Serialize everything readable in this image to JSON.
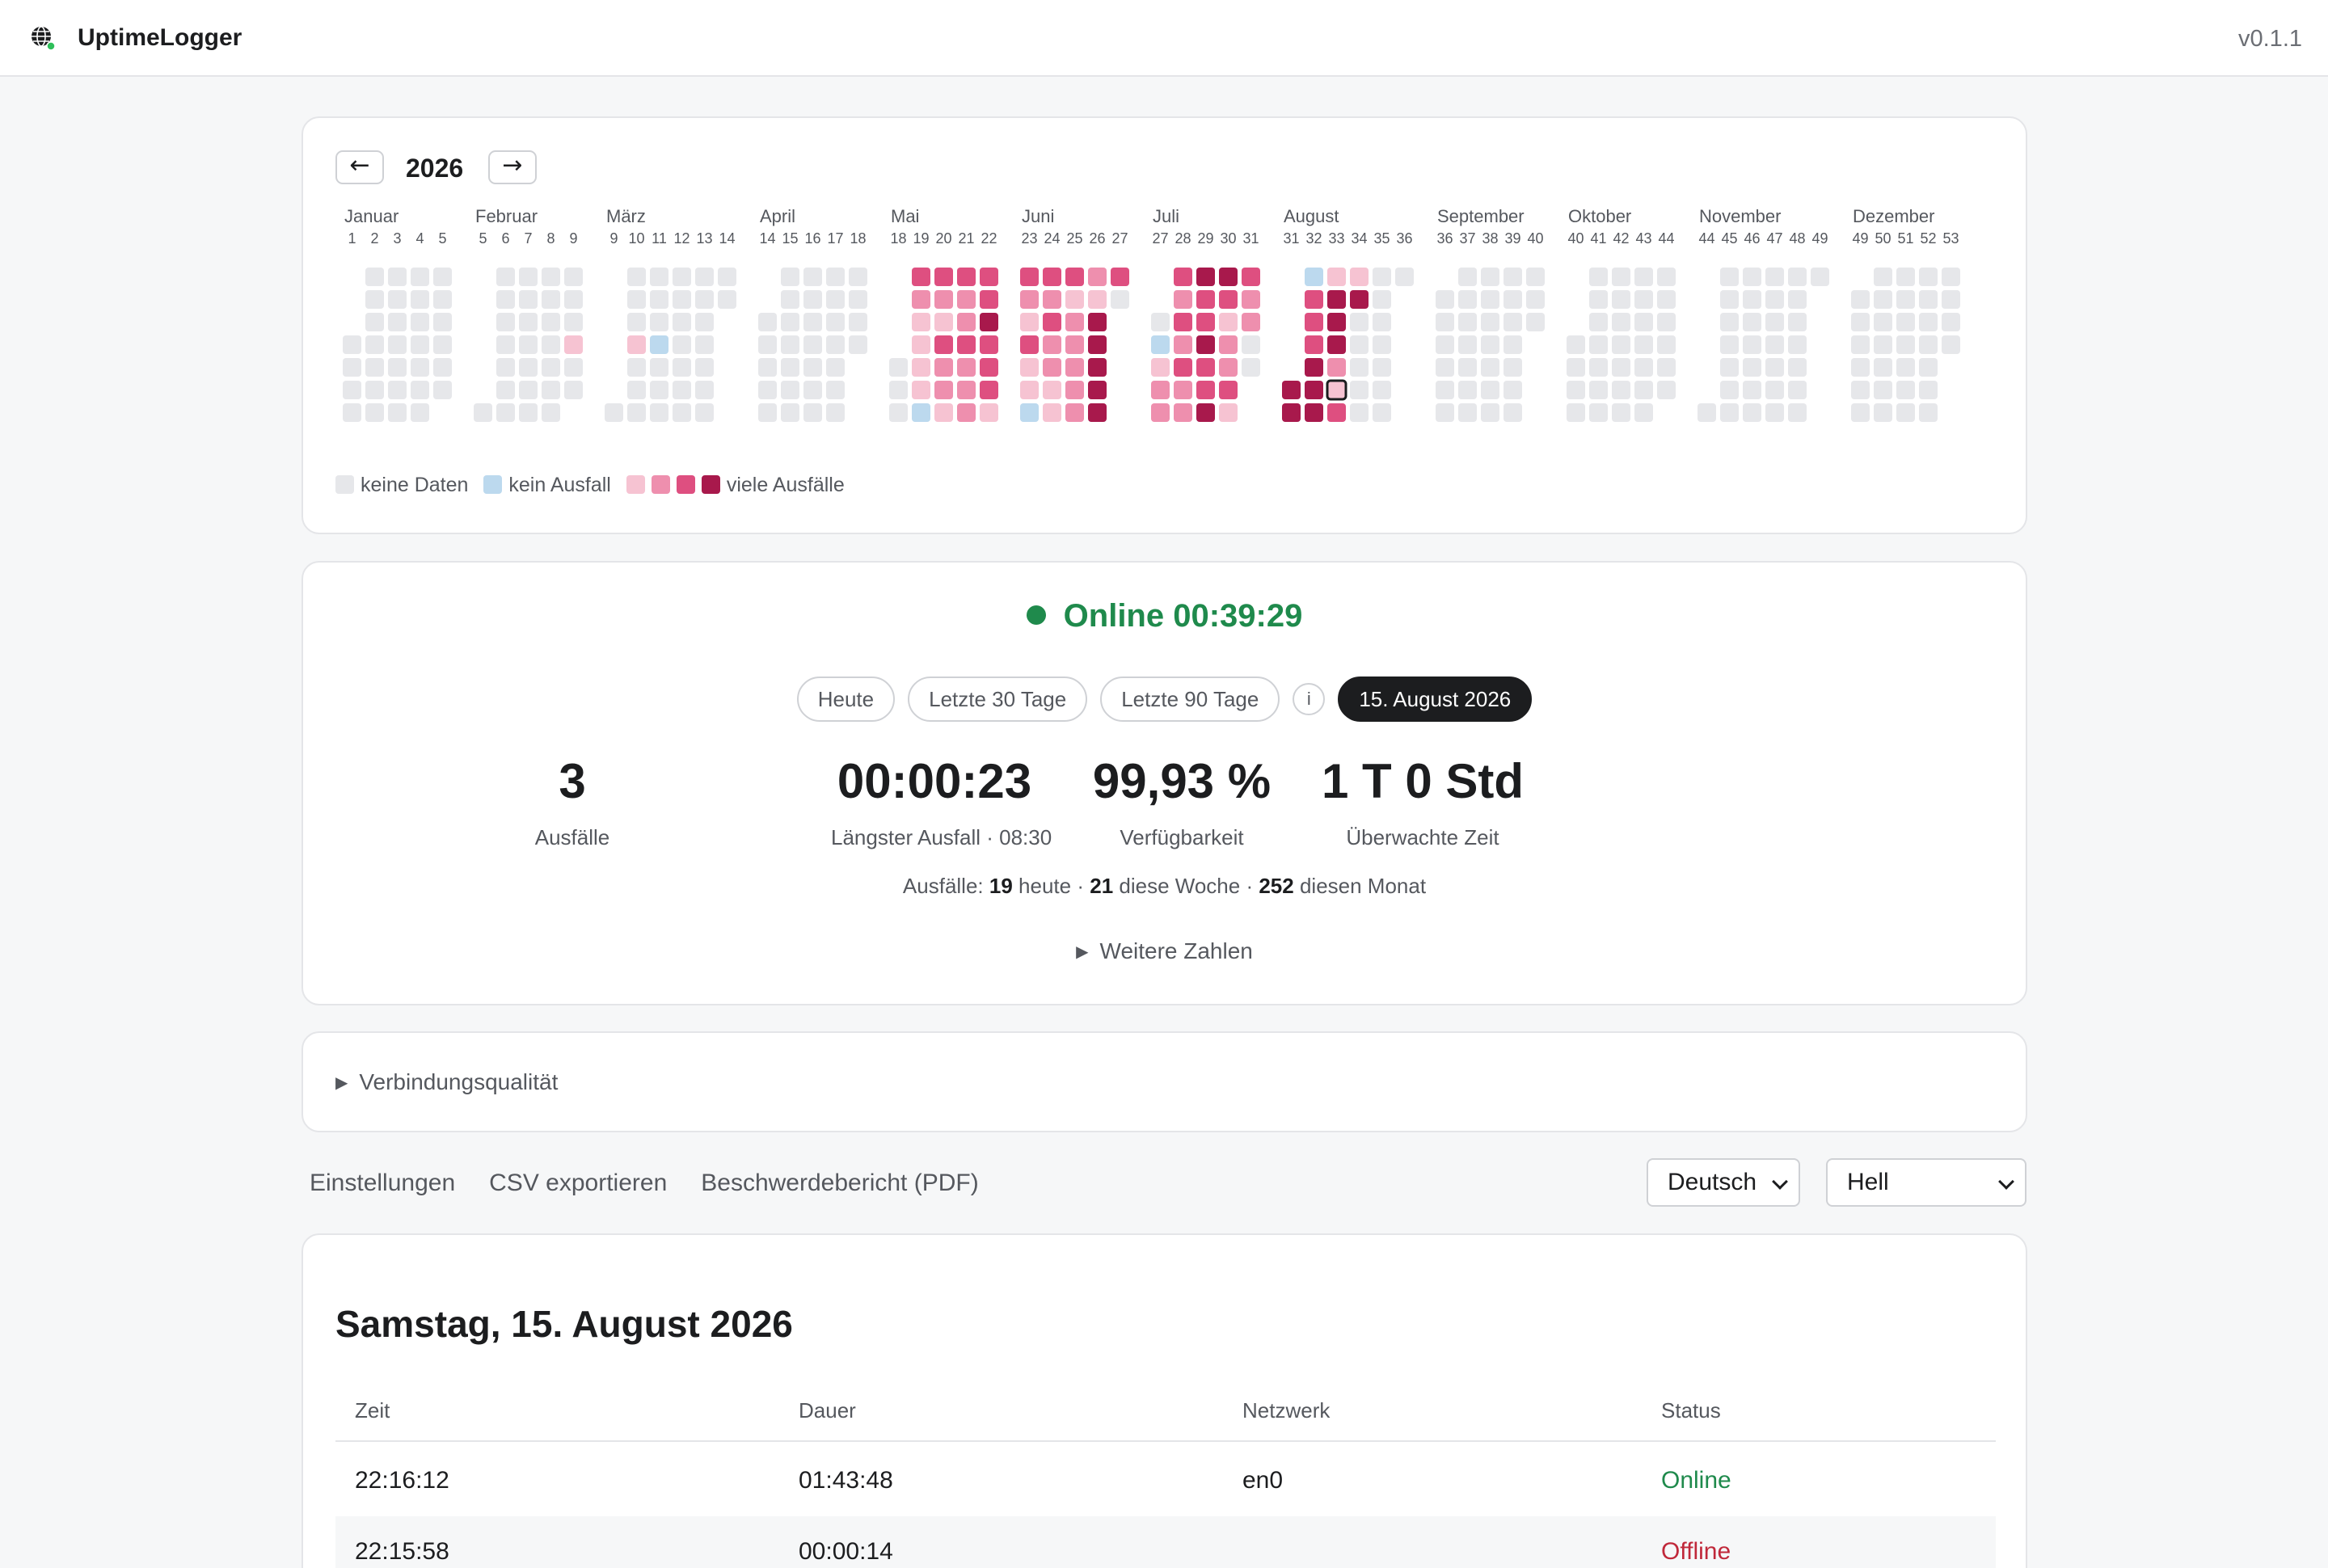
{
  "app": {
    "name": "UptimeLogger",
    "version": "v0.1.1",
    "logo_icon": "globe-icon"
  },
  "calendar": {
    "year": "2026",
    "prev_label": "←",
    "next_label": "→",
    "months": [
      "Januar",
      "Februar",
      "März",
      "April",
      "Mai",
      "Juni",
      "Juli",
      "August",
      "September",
      "Oktober",
      "November",
      "Dezember"
    ],
    "colors": {
      "none": "#e6e7ea",
      "zero": "#bcd9ee",
      "l1": "#f6c3d2",
      "l2": "#ee8fae",
      "l3": "#de4f80",
      "l4": "#a8194c"
    },
    "legend": {
      "no_data": "keine Daten",
      "no_outage": "kein Ausfall",
      "many": "viele Ausfälle"
    },
    "selected_day": "2026-08-15",
    "levels": {
      "2026-02-26": 1,
      "2026-03-05": 1,
      "2026-03-12": 0,
      "2026-05-04": 3,
      "2026-05-05": 2,
      "2026-05-06": 1,
      "2026-05-07": 1,
      "2026-05-08": 1,
      "2026-05-09": 1,
      "2026-05-10": 0,
      "2026-05-11": 3,
      "2026-05-12": 2,
      "2026-05-13": 1,
      "2026-05-14": 3,
      "2026-05-15": 2,
      "2026-05-16": 2,
      "2026-05-17": 1,
      "2026-05-18": 3,
      "2026-05-19": 2,
      "2026-05-20": 2,
      "2026-05-21": 3,
      "2026-05-22": 2,
      "2026-05-23": 2,
      "2026-05-24": 2,
      "2026-05-25": 3,
      "2026-05-26": 3,
      "2026-05-27": 4,
      "2026-05-28": 3,
      "2026-05-29": 3,
      "2026-05-30": 3,
      "2026-05-31": 1,
      "2026-06-01": 3,
      "2026-06-02": 2,
      "2026-06-03": 1,
      "2026-06-04": 3,
      "2026-06-05": 1,
      "2026-06-06": 1,
      "2026-06-07": 0,
      "2026-06-08": 3,
      "2026-06-09": 2,
      "2026-06-10": 3,
      "2026-06-11": 2,
      "2026-06-12": 2,
      "2026-06-13": 1,
      "2026-06-14": 1,
      "2026-06-15": 3,
      "2026-06-16": 1,
      "2026-06-17": 2,
      "2026-06-18": 2,
      "2026-06-19": 2,
      "2026-06-20": 2,
      "2026-06-21": 2,
      "2026-06-22": 2,
      "2026-06-23": 1,
      "2026-06-24": 4,
      "2026-06-25": 4,
      "2026-06-26": 4,
      "2026-06-27": 4,
      "2026-06-28": 4,
      "2026-06-29": 3,
      "2026-07-02": 0,
      "2026-07-03": 1,
      "2026-07-04": 2,
      "2026-07-05": 2,
      "2026-07-06": 3,
      "2026-07-07": 2,
      "2026-07-08": 3,
      "2026-07-09": 2,
      "2026-07-10": 3,
      "2026-07-11": 2,
      "2026-07-12": 2,
      "2026-07-13": 4,
      "2026-07-14": 3,
      "2026-07-15": 3,
      "2026-07-16": 4,
      "2026-07-17": 3,
      "2026-07-18": 3,
      "2026-07-19": 4,
      "2026-07-20": 4,
      "2026-07-21": 3,
      "2026-07-22": 1,
      "2026-07-23": 2,
      "2026-07-24": 2,
      "2026-07-25": 3,
      "2026-07-26": 1,
      "2026-07-27": 3,
      "2026-07-28": 2,
      "2026-07-29": 2,
      "2026-08-01": 4,
      "2026-08-02": 4,
      "2026-08-03": 0,
      "2026-08-04": 3,
      "2026-08-05": 3,
      "2026-08-06": 3,
      "2026-08-07": 4,
      "2026-08-08": 4,
      "2026-08-09": 4,
      "2026-08-10": 1,
      "2026-08-11": 4,
      "2026-08-12": 4,
      "2026-08-13": 4,
      "2026-08-14": 2,
      "2026-08-15": 1,
      "2026-08-16": 3,
      "2026-08-17": 1,
      "2026-08-18": 4
    }
  },
  "status": {
    "text": "Online 00:39:29"
  },
  "periods": [
    {
      "label": "Heute"
    },
    {
      "label": "Letzte 30 Tage"
    },
    {
      "label": "Letzte 90 Tage"
    },
    {
      "label": "i"
    },
    {
      "label": "15. August 2026",
      "active": true
    }
  ],
  "stats": [
    {
      "value": "3",
      "label": "Ausfälle"
    },
    {
      "value": "00:00:23",
      "label": "Längster Ausfall · 08:30"
    },
    {
      "value": "99,93 %",
      "label": "Verfügbarkeit"
    },
    {
      "value": "1 T 0 Std",
      "label": "Überwachte Zeit"
    }
  ],
  "summary": {
    "prefix": "Ausfälle:",
    "today": "19",
    "today_label": "heute ·",
    "week": "21",
    "week_label": "diese Woche ·",
    "month": "252",
    "month_label": "diesen Monat"
  },
  "more_numbers": "Weitere Zahlen",
  "connection_quality": "Verbindungsqualität",
  "actions": {
    "settings": "Einstellungen",
    "csv": "CSV exportieren",
    "pdf": "Beschwerdebericht (PDF)"
  },
  "language": "Deutsch",
  "theme": "Hell",
  "day": {
    "title": "Samstag, 15. August 2026",
    "columns": [
      "Zeit",
      "Dauer",
      "Netzwerk",
      "Status"
    ],
    "rows": [
      {
        "time": "22:16:12",
        "duration": "01:43:48",
        "network": "en0",
        "status": "Online",
        "state": "ok"
      },
      {
        "time": "22:15:58",
        "duration": "00:00:14",
        "network": "",
        "status": "Offline",
        "state": "bad"
      }
    ]
  }
}
